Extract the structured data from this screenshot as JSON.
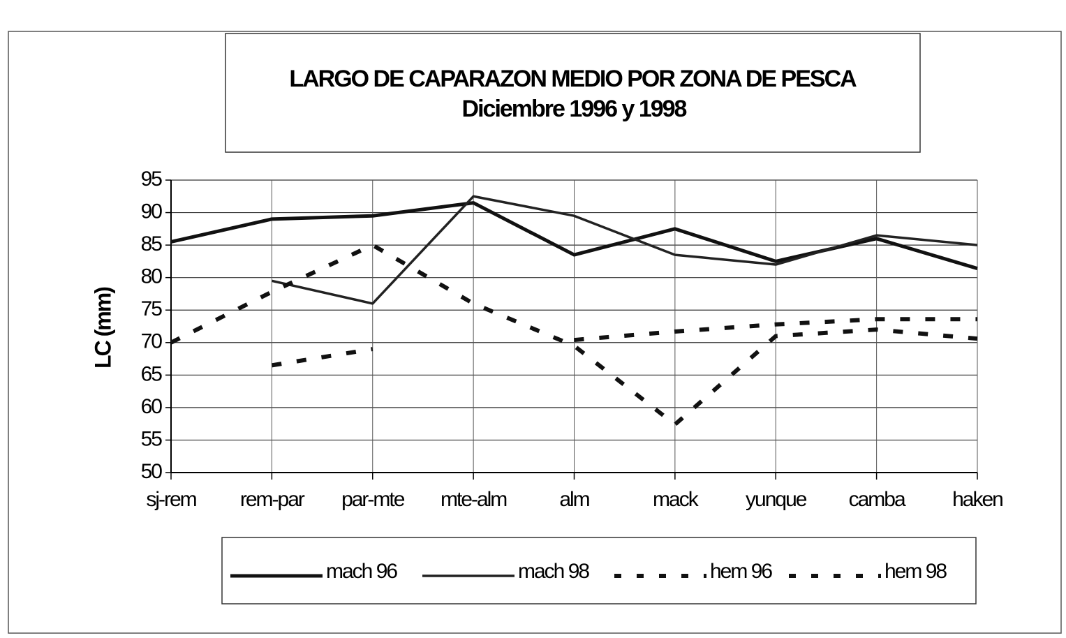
{
  "chart_data": {
    "type": "line",
    "title": "LARGO DE CAPARAZON MEDIO POR ZONA DE PESCA",
    "subtitle": "Diciembre 1996 y 1998",
    "y_label": "LC (mm)",
    "categories": [
      "sj-rem",
      "rem-par",
      "par-mte",
      "mte-alm",
      "alm",
      "mack",
      "yunque",
      "camba",
      "haken"
    ],
    "series": [
      {
        "name": "mach 96",
        "color": "#111111",
        "line_style": "solid",
        "values": [
          85.5,
          89,
          89.5,
          91.5,
          83.5,
          87.5,
          82.5,
          86,
          81.4
        ]
      },
      {
        "name": "mach 98",
        "color": "#222222",
        "line_style": "solid",
        "values": [
          null,
          79.5,
          76,
          92.5,
          89.5,
          83.5,
          82,
          86.5,
          85
        ]
      },
      {
        "name": "hem 96",
        "color": "#111111",
        "line_style": "dashed",
        "values": [
          70,
          77.8,
          85,
          76,
          69.5,
          57.4,
          71,
          72,
          70.6
        ]
      },
      {
        "name": "hem 98",
        "color": "#111111",
        "line_style": "dashed",
        "values": [
          null,
          66.5,
          69,
          null,
          70.4,
          71.7,
          72.8,
          73.6,
          73.6
        ]
      }
    ],
    "ylim": [
      50,
      95
    ],
    "yticks": [
      50,
      55,
      60,
      65,
      70,
      75,
      80,
      85,
      90,
      95
    ],
    "grid": true,
    "legend": "bottom"
  }
}
